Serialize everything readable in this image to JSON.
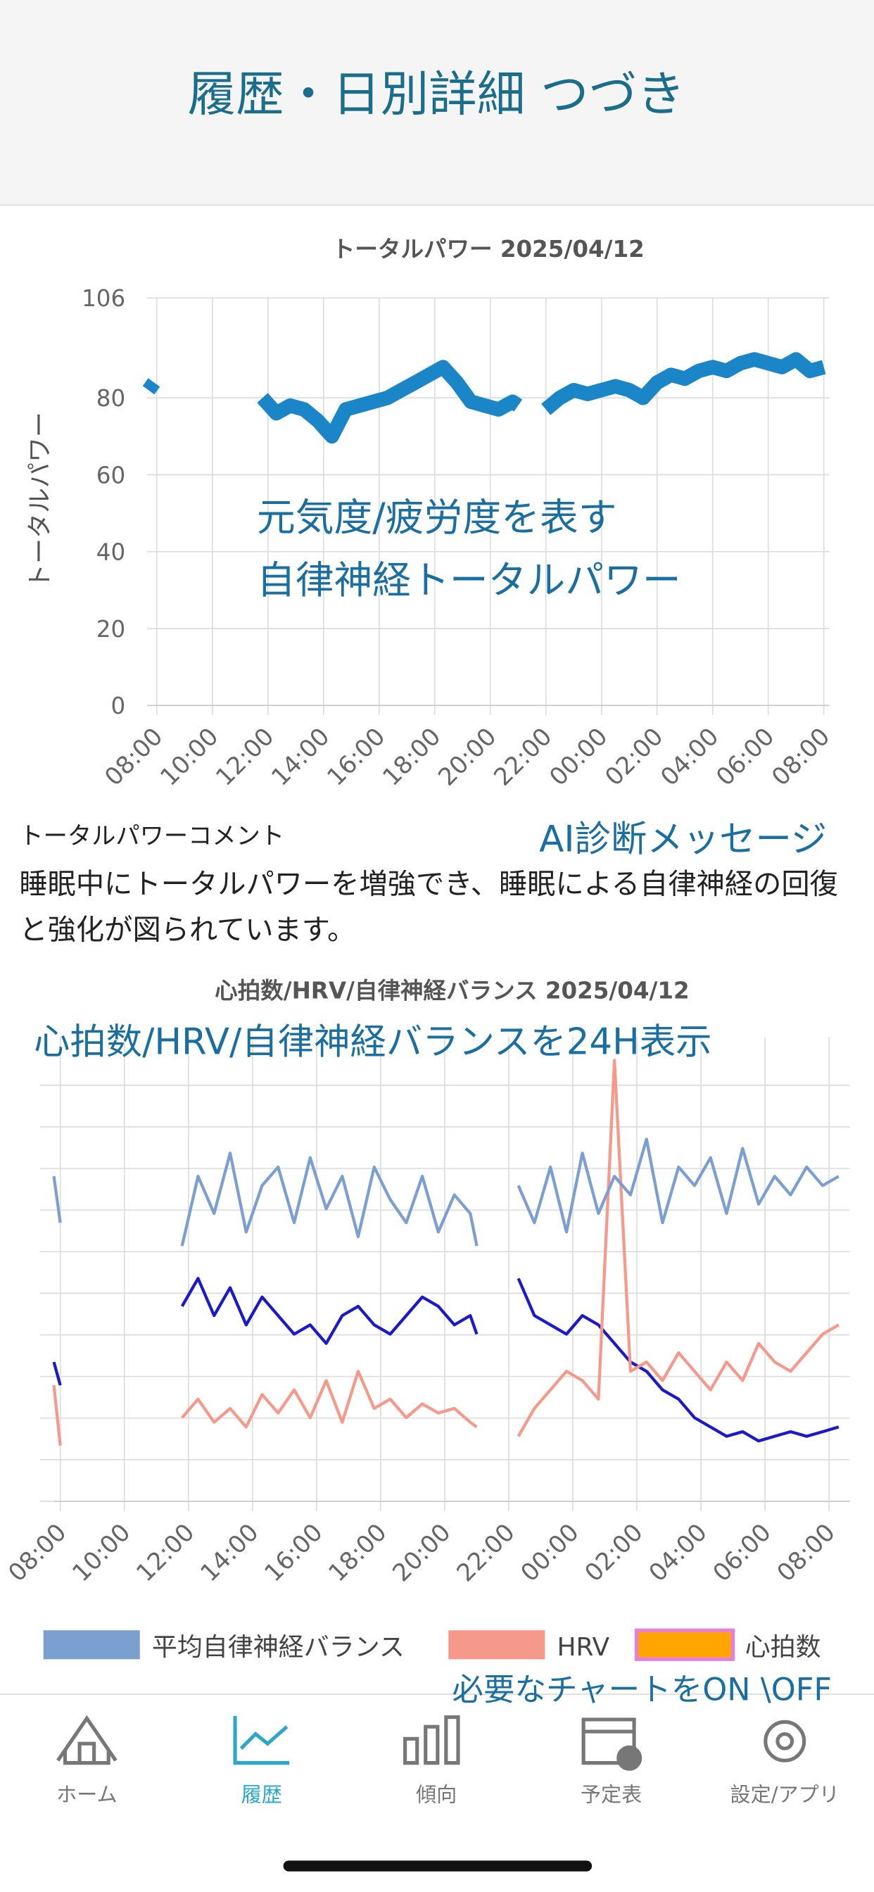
{
  "header": {
    "title": "履歴・日別詳細 つづき"
  },
  "chart_data": [
    {
      "type": "line",
      "title": "トータルパワー 2025/04/12",
      "y_label": "トータルパワー",
      "annotations": [
        "元気度/疲労度を表す",
        "自律神経トータルパワー"
      ],
      "xlim": [
        7.65,
        32.2
      ],
      "xticks": [
        {
          "value": 8,
          "label": "08:00"
        },
        {
          "value": 10,
          "label": "10:00"
        },
        {
          "value": 12,
          "label": "12:00"
        },
        {
          "value": 14,
          "label": "14:00"
        },
        {
          "value": 16,
          "label": "16:00"
        },
        {
          "value": 18,
          "label": "18:00"
        },
        {
          "value": 20,
          "label": "20:00"
        },
        {
          "value": 22,
          "label": "22:00"
        },
        {
          "value": 24,
          "label": "00:00"
        },
        {
          "value": 26,
          "label": "02:00"
        },
        {
          "value": 28,
          "label": "04:00"
        },
        {
          "value": 30,
          "label": "06:00"
        },
        {
          "value": 32,
          "label": "08:00"
        }
      ],
      "ylim": [
        0,
        106
      ],
      "yticks": [
        0,
        20,
        40,
        60,
        80,
        106
      ],
      "grid": true,
      "x": [
        7.7,
        7.9,
        8.4,
        11.8,
        12.3,
        12.8,
        13.3,
        13.8,
        14.3,
        14.8,
        15.3,
        15.8,
        16.3,
        16.8,
        17.3,
        17.8,
        18.3,
        18.8,
        19.3,
        19.8,
        20.3,
        20.8,
        21.0,
        21.5,
        22.0,
        22.5,
        23.0,
        23.5,
        24.0,
        24.5,
        25.0,
        25.5,
        26.0,
        26.5,
        27.0,
        27.5,
        28.0,
        28.5,
        29.0,
        29.5,
        30.0,
        30.5,
        31.0,
        31.5,
        32.0
      ],
      "series": [
        {
          "name": "トータルパワー",
          "color": "#1a86c8",
          "values": [
            82,
            84,
            null,
            80,
            76,
            78,
            77,
            74,
            70,
            77,
            78,
            79,
            80,
            82,
            84,
            86,
            88,
            84,
            79,
            78,
            77,
            79,
            78,
            null,
            77,
            80,
            82,
            81,
            82,
            83,
            82,
            80,
            84,
            86,
            85,
            87,
            88,
            87,
            89,
            90,
            89,
            88,
            90,
            87,
            88
          ]
        }
      ]
    },
    {
      "type": "line",
      "title": "心拍数/HRV/自律神経バランス 2025/04/12",
      "annotations": [
        "心拍数/HRV/自律神経バランスを24H表示"
      ],
      "xlim": [
        7.81,
        32.65
      ],
      "xticks": [
        {
          "value": 8,
          "label": "08:00"
        },
        {
          "value": 10,
          "label": "10:00"
        },
        {
          "value": 12,
          "label": "12:00"
        },
        {
          "value": 14,
          "label": "14:00"
        },
        {
          "value": 16,
          "label": "16:00"
        },
        {
          "value": 18,
          "label": "18:00"
        },
        {
          "value": 20,
          "label": "20:00"
        },
        {
          "value": 22,
          "label": "22:00"
        },
        {
          "value": 24,
          "label": "00:00"
        },
        {
          "value": 26,
          "label": "02:00"
        },
        {
          "value": 28,
          "label": "04:00"
        },
        {
          "value": 30,
          "label": "06:00"
        },
        {
          "value": 32,
          "label": "08:00"
        }
      ],
      "ylim": [
        0,
        100
      ],
      "grid": true,
      "x": [
        7.8,
        8.0,
        8.5,
        11.8,
        12.3,
        12.8,
        13.3,
        13.8,
        14.3,
        14.8,
        15.3,
        15.8,
        16.3,
        16.8,
        17.3,
        17.8,
        18.3,
        18.8,
        19.3,
        19.8,
        20.3,
        20.8,
        21.0,
        21.5,
        22.3,
        22.8,
        23.3,
        23.8,
        24.3,
        24.8,
        25.3,
        25.8,
        26.3,
        26.8,
        27.3,
        27.8,
        28.3,
        28.8,
        29.3,
        29.8,
        30.3,
        30.8,
        31.3,
        31.8,
        32.3
      ],
      "series": [
        {
          "name": "心拍数",
          "color": "#ffa500",
          "border_color": "#e47de4",
          "line_color": "#1a1acc",
          "values": [
            30,
            25,
            null,
            42,
            48,
            40,
            46,
            38,
            44,
            40,
            36,
            38,
            34,
            40,
            42,
            38,
            36,
            40,
            44,
            42,
            38,
            40,
            36,
            null,
            48,
            40,
            38,
            36,
            40,
            38,
            34,
            30,
            28,
            24,
            22,
            18,
            16,
            14,
            15,
            13,
            14,
            15,
            14,
            15,
            16
          ]
        },
        {
          "name": "HRV",
          "color": "#f6998a",
          "values": [
            25,
            12,
            null,
            18,
            22,
            17,
            20,
            16,
            23,
            19,
            24,
            18,
            26,
            17,
            28,
            20,
            22,
            18,
            21,
            19,
            20,
            17,
            16,
            null,
            14,
            20,
            24,
            28,
            26,
            22,
            95,
            28,
            30,
            26,
            32,
            28,
            24,
            30,
            26,
            34,
            30,
            28,
            32,
            36,
            38
          ]
        },
        {
          "name": "平均自律神経バランス",
          "color": "#7b9fd0",
          "values": [
            70,
            60,
            null,
            55,
            70,
            62,
            75,
            58,
            68,
            72,
            60,
            74,
            63,
            70,
            57,
            72,
            65,
            60,
            70,
            58,
            66,
            62,
            55,
            null,
            68,
            60,
            72,
            58,
            75,
            62,
            70,
            66,
            78,
            60,
            72,
            68,
            74,
            62,
            76,
            64,
            70,
            66,
            72,
            68,
            70
          ]
        }
      ],
      "legend_order": [
        2,
        1,
        0
      ],
      "note": "必要なチャートをON \\OFF"
    }
  ],
  "comment": {
    "heading": "トータルパワーコメント",
    "tag": "AI診断メッセージ",
    "body": "睡眠中にトータルパワーを増強でき、睡眠による自律神経の回復と強化が図られています。"
  },
  "nav": {
    "items": [
      "ホーム",
      "履歴",
      "傾向",
      "予定表",
      "設定/アプリ"
    ],
    "active": 1
  }
}
